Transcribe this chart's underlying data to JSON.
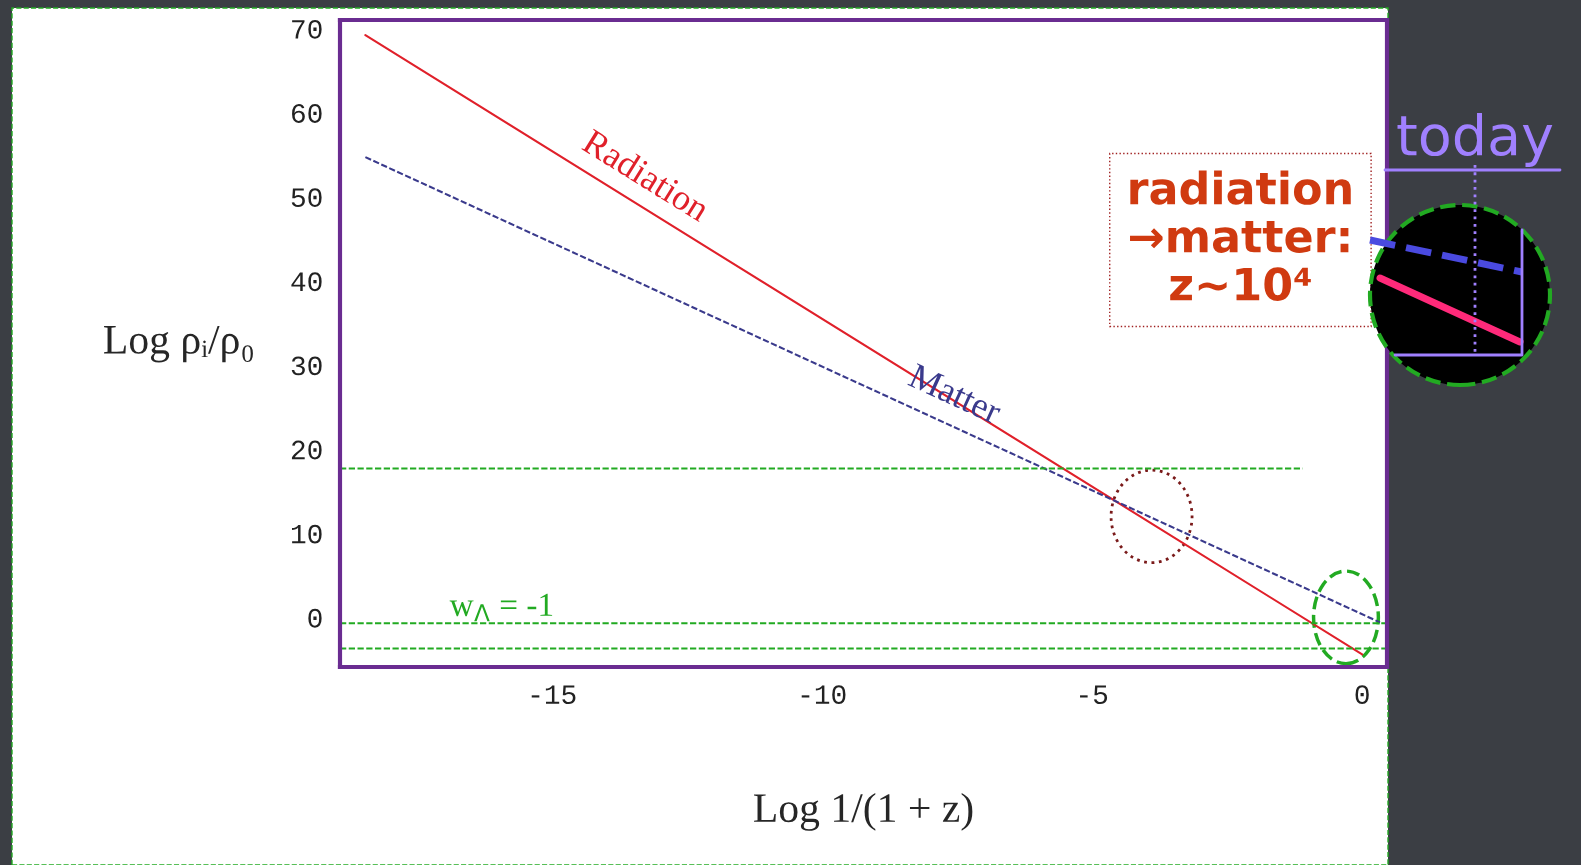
{
  "chart_data": {
    "type": "line",
    "xlabel": "Log 1/(1 + z)",
    "ylabel": "Log ρᵢ/ρ₀",
    "xlim": [
      -18.93,
      0.46
    ],
    "ylim": [
      -5.9,
      71
    ],
    "xticks": [
      -15,
      -10,
      -5,
      0
    ],
    "yticks": [
      0,
      10,
      20,
      30,
      40,
      50,
      60,
      70
    ],
    "grid": false,
    "legend": false,
    "series": [
      {
        "name": "Radiation",
        "color": "#e0202a",
        "line_style": "solid",
        "x": [
          -18.46,
          0
        ],
        "values": [
          69.2,
          -4.4
        ]
      },
      {
        "name": "Matter",
        "color": "#3a3a8c",
        "line_style": "dashed",
        "x": [
          -18.46,
          0.33
        ],
        "values": [
          54.7,
          -0.6
        ]
      },
      {
        "color": "#22aa22",
        "line_style": "dashed",
        "x": [
          -18.93,
          -1.1
        ],
        "values": [
          17.7,
          17.7
        ]
      },
      {
        "color": "#22aa22",
        "line_style": "dashed",
        "x": [
          -18.93,
          0.46
        ],
        "values": [
          -0.7,
          -0.7
        ]
      },
      {
        "color": "#22aa22",
        "line_style": "dashed",
        "x": [
          -18.93,
          0.46
        ],
        "values": [
          -3.7,
          -3.7
        ]
      }
    ],
    "annotations": [
      {
        "text": "w$_{Λ}$ = -1",
        "x": -16.9,
        "y": -0.7
      },
      "radiation\n→matter:\nz~10⁴",
      "today"
    ]
  }
}
